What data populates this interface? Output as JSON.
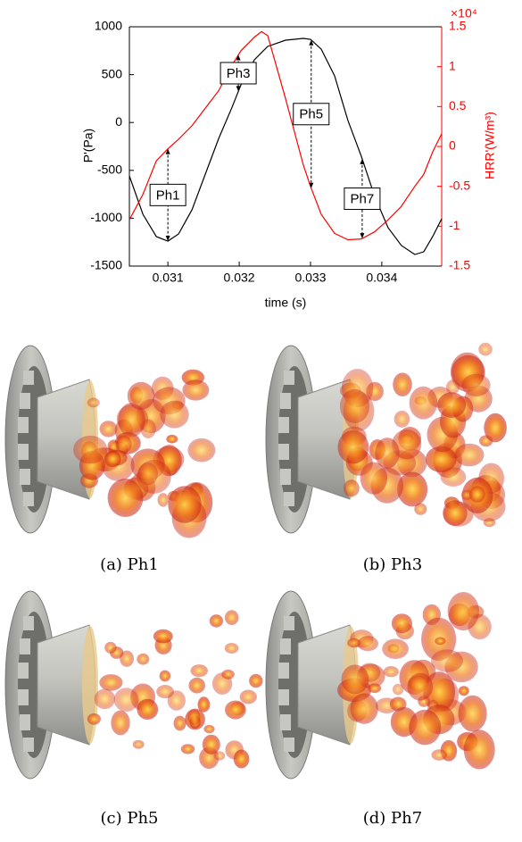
{
  "chart_data": {
    "type": "line",
    "xlabel": "time (s)",
    "ylabel": "P'(Pa)",
    "y2label": "HRR'(W/m³)",
    "y2_multiplier": "×10⁴",
    "x": [
      0.03046,
      0.03065,
      0.030838,
      0.031,
      0.03115,
      0.031338,
      0.031525,
      0.031713,
      0.0319,
      0.032025,
      0.032213,
      0.032313,
      0.0324,
      0.03265,
      0.0329,
      0.033,
      0.03315,
      0.033338,
      0.033525,
      0.033713,
      0.0339,
      0.034088,
      0.034275,
      0.034463,
      0.034588,
      0.034713,
      0.03484
    ],
    "series": [
      {
        "color": "#000000",
        "values": [
          -558,
          -959,
          -1192,
          -1239,
          -1164,
          -912,
          -539,
          -166,
          160,
          394,
          655,
          730,
          795,
          860,
          879,
          869,
          767,
          487,
          21,
          -353,
          -772,
          -1099,
          -1285,
          -1379,
          -1351,
          -1192,
          -1006
        ]
      },
      {
        "color": "#ff0000",
        "axis": "y2",
        "values": [
          -0.92,
          -0.6,
          -0.18,
          -0.03,
          0.09,
          0.26,
          0.48,
          0.7,
          1.02,
          1.2,
          1.37,
          1.44,
          1.39,
          0.6,
          -0.235,
          -0.5,
          -0.85,
          -1.09,
          -1.17,
          -1.16,
          -1.07,
          -0.92,
          -0.75,
          -0.5,
          -0.35,
          -0.07,
          0.16
        ]
      }
    ],
    "xlim": [
      0.03046,
      0.03484
    ],
    "xticks": [
      0.031,
      0.032,
      0.033,
      0.034
    ],
    "ylim": [
      -1500,
      1000
    ],
    "yticks": [
      -1500,
      -1000,
      -500,
      0,
      500,
      1000
    ],
    "y2lim": [
      -1.5,
      1.5
    ],
    "y2ticks": [
      -1.5,
      -1,
      -0.5,
      0,
      0.5,
      1,
      1.5
    ],
    "annotations": [
      {
        "text": "Ph1",
        "x": 0.031
      },
      {
        "text": "Ph3",
        "x": 0.031988
      },
      {
        "text": "Ph5",
        "x": 0.03301
      },
      {
        "text": "Ph7",
        "x": 0.033725
      }
    ]
  },
  "figures": [
    {
      "caption": "(a) Ph1"
    },
    {
      "caption": "(b) Ph3"
    },
    {
      "caption": "(c) Ph5"
    },
    {
      "caption": "(d) Ph7"
    }
  ]
}
